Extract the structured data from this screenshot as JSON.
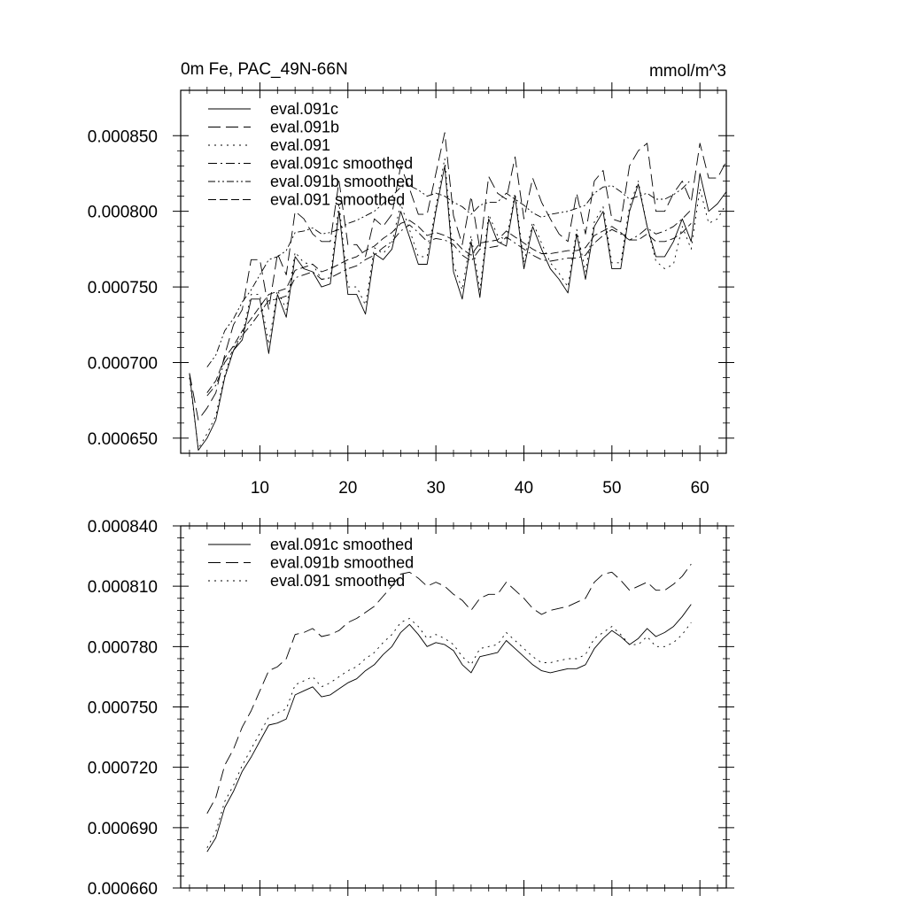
{
  "chart_data": [
    {
      "type": "line",
      "title_left": "0m Fe, PAC_49N-66N",
      "title_right": "mmol/m^3",
      "xlabel": "",
      "ylabel": "",
      "xlim": [
        1,
        63
      ],
      "ylim": [
        0.00064,
        0.00088
      ],
      "xticks": [
        10,
        20,
        30,
        40,
        50,
        60
      ],
      "xtick_labels": [
        "10",
        "20",
        "30",
        "40",
        "50",
        "60"
      ],
      "yticks": [
        0.00065,
        0.0007,
        0.00075,
        0.0008,
        0.00085
      ],
      "ytick_labels": [
        "0.000650",
        "0.000700",
        "0.000750",
        "0.000800",
        "0.000850"
      ],
      "grid": false,
      "legend_position": "top-left",
      "x_start": 2,
      "series": [
        {
          "name": "eval.091c",
          "dash": "solid",
          "values": [
            0.000693,
            0.000642,
            0.00065,
            0.000662,
            0.00069,
            0.000708,
            0.000715,
            0.000742,
            0.000742,
            0.000706,
            0.000745,
            0.00073,
            0.00077,
            0.000762,
            0.00076,
            0.00075,
            0.000752,
            0.0008,
            0.000745,
            0.000745,
            0.000732,
            0.000772,
            0.000768,
            0.000775,
            0.0008,
            0.000783,
            0.000765,
            0.000765,
            0.0008,
            0.00083,
            0.00076,
            0.000742,
            0.00078,
            0.000743,
            0.000795,
            0.00078,
            0.000777,
            0.00081,
            0.000762,
            0.00079,
            0.000775,
            0.000762,
            0.000755,
            0.000746,
            0.000785,
            0.000755,
            0.00079,
            0.0008,
            0.000762,
            0.000762,
            0.0008,
            0.000818,
            0.00079,
            0.00077,
            0.00077,
            0.00078,
            0.000795,
            0.00078,
            0.000825,
            0.0008,
            0.000805,
            0.000813
          ]
        },
        {
          "name": "eval.091b",
          "dash": "long",
          "values": [
            0.000693,
            0.000662,
            0.00067,
            0.00068,
            0.000705,
            0.000725,
            0.000735,
            0.000768,
            0.000768,
            0.000735,
            0.000772,
            0.000758,
            0.0008,
            0.000795,
            0.000785,
            0.00078,
            0.00078,
            0.00082,
            0.000778,
            0.000778,
            0.00077,
            0.000795,
            0.00079,
            0.000798,
            0.00083,
            0.000815,
            0.000798,
            0.000798,
            0.000825,
            0.000852,
            0.000797,
            0.000778,
            0.00081,
            0.000775,
            0.000823,
            0.000812,
            0.000808,
            0.000836,
            0.000795,
            0.000822,
            0.000806,
            0.000795,
            0.000785,
            0.00078,
            0.000812,
            0.000785,
            0.00082,
            0.000827,
            0.000795,
            0.000793,
            0.00083,
            0.00084,
            0.000845,
            0.0008,
            0.0008,
            0.000812,
            0.00082,
            0.000806,
            0.000845,
            0.000822,
            0.000822,
            0.000833
          ]
        },
        {
          "name": "eval.091",
          "dash": "dot",
          "values": [
            0.00069,
            0.000643,
            0.000653,
            0.000665,
            0.000692,
            0.00071,
            0.000718,
            0.000745,
            0.000745,
            0.000712,
            0.000748,
            0.000735,
            0.000773,
            0.000766,
            0.000765,
            0.000755,
            0.000756,
            0.000805,
            0.00075,
            0.00075,
            0.000738,
            0.000776,
            0.000772,
            0.000779,
            0.000805,
            0.000788,
            0.00077,
            0.00077,
            0.000803,
            0.000835,
            0.000765,
            0.000748,
            0.000784,
            0.000748,
            0.000798,
            0.000784,
            0.000781,
            0.000812,
            0.000766,
            0.000793,
            0.000779,
            0.000766,
            0.000759,
            0.00075,
            0.000788,
            0.00076,
            0.000793,
            0.000803,
            0.000766,
            0.000766,
            0.000803,
            0.00082,
            0.00079,
            0.000767,
            0.000762,
            0.000765,
            0.00079,
            0.000775,
            0.000815,
            0.000792,
            0.000795,
            0.000805
          ]
        },
        {
          "name": "eval.091c smoothed",
          "dash": "dashdot",
          "x_start": 4,
          "values": [
            0.000678,
            0.000685,
            0.0007,
            0.000708,
            0.000718,
            0.000725,
            0.000733,
            0.000741,
            0.000742,
            0.000744,
            0.000756,
            0.000758,
            0.00076,
            0.000755,
            0.000756,
            0.000759,
            0.000762,
            0.000764,
            0.000768,
            0.000771,
            0.000776,
            0.00078,
            0.000787,
            0.000791,
            0.000786,
            0.00078,
            0.000782,
            0.000781,
            0.000778,
            0.000771,
            0.000767,
            0.000775,
            0.000776,
            0.000777,
            0.000783,
            0.000779,
            0.000775,
            0.000771,
            0.000768,
            0.000767,
            0.000768,
            0.000769,
            0.000769,
            0.000771,
            0.000779,
            0.000784,
            0.000788,
            0.000785,
            0.000781,
            0.000784,
            0.000789,
            0.000785,
            0.000787,
            0.00079,
            0.000795,
            0.000801
          ]
        },
        {
          "name": "eval.091b smoothed",
          "dash": "dashdotdot",
          "x_start": 4,
          "values": [
            0.000697,
            0.000705,
            0.000721,
            0.000729,
            0.00074,
            0.000748,
            0.000758,
            0.000768,
            0.00077,
            0.000774,
            0.000786,
            0.000787,
            0.000789,
            0.000785,
            0.000786,
            0.000788,
            0.000792,
            0.000794,
            0.000797,
            0.0008,
            0.000805,
            0.00081,
            0.000816,
            0.000817,
            0.000814,
            0.00081,
            0.000812,
            0.00081,
            0.000806,
            0.000803,
            0.000798,
            0.000804,
            0.000806,
            0.000806,
            0.000812,
            0.000808,
            0.000804,
            0.000799,
            0.000796,
            0.000798,
            0.000799,
            0.0008,
            0.000802,
            0.000804,
            0.000812,
            0.000816,
            0.000817,
            0.000813,
            0.000808,
            0.00081,
            0.000812,
            0.000808,
            0.000808,
            0.000811,
            0.000815,
            0.000821
          ]
        },
        {
          "name": "eval.091 smoothed",
          "dash": "medium",
          "x_start": 4,
          "values": [
            0.00068,
            0.000688,
            0.000703,
            0.000711,
            0.000721,
            0.000729,
            0.000737,
            0.000745,
            0.000747,
            0.000749,
            0.000761,
            0.000763,
            0.000765,
            0.00076,
            0.000762,
            0.000765,
            0.000768,
            0.00077,
            0.000774,
            0.000777,
            0.000782,
            0.000786,
            0.000792,
            0.000794,
            0.00079,
            0.000784,
            0.000786,
            0.000784,
            0.000781,
            0.000775,
            0.000771,
            0.000779,
            0.00078,
            0.000781,
            0.000787,
            0.000783,
            0.000779,
            0.000775,
            0.000772,
            0.000772,
            0.000773,
            0.000774,
            0.000774,
            0.000776,
            0.000784,
            0.000787,
            0.00079,
            0.000786,
            0.000781,
            0.000781,
            0.000785,
            0.00078,
            0.00078,
            0.000782,
            0.000786,
            0.000792
          ]
        }
      ]
    },
    {
      "type": "line",
      "title_left": "",
      "title_right": "",
      "xlabel": "",
      "ylabel": "",
      "xlim": [
        1,
        63
      ],
      "ylim": [
        0.00066,
        0.00084
      ],
      "xticks": [
        10,
        20,
        30,
        40,
        50,
        60
      ],
      "xtick_labels": [],
      "yticks": [
        0.00066,
        0.00069,
        0.00072,
        0.00075,
        0.00078,
        0.00081,
        0.00084
      ],
      "ytick_labels": [
        "0.000660",
        "0.000690",
        "0.000720",
        "0.000750",
        "0.000780",
        "0.000810",
        "0.000840"
      ],
      "grid": false,
      "legend_position": "top-left",
      "x_start": 4,
      "series": [
        {
          "name": "eval.091c smoothed",
          "dash": "solid",
          "values": [
            0.000678,
            0.000685,
            0.0007,
            0.000708,
            0.000718,
            0.000725,
            0.000733,
            0.000741,
            0.000742,
            0.000744,
            0.000756,
            0.000758,
            0.00076,
            0.000755,
            0.000756,
            0.000759,
            0.000762,
            0.000764,
            0.000768,
            0.000771,
            0.000776,
            0.00078,
            0.000787,
            0.000791,
            0.000786,
            0.00078,
            0.000782,
            0.000781,
            0.000778,
            0.000771,
            0.000767,
            0.000775,
            0.000776,
            0.000777,
            0.000783,
            0.000779,
            0.000775,
            0.000771,
            0.000768,
            0.000767,
            0.000768,
            0.000769,
            0.000769,
            0.000771,
            0.000779,
            0.000784,
            0.000788,
            0.000785,
            0.000781,
            0.000784,
            0.000789,
            0.000785,
            0.000787,
            0.00079,
            0.000795,
            0.000801
          ]
        },
        {
          "name": "eval.091b smoothed",
          "dash": "long",
          "values": [
            0.000697,
            0.000705,
            0.000721,
            0.000729,
            0.00074,
            0.000748,
            0.000758,
            0.000768,
            0.00077,
            0.000774,
            0.000786,
            0.000787,
            0.000789,
            0.000785,
            0.000786,
            0.000788,
            0.000792,
            0.000794,
            0.000797,
            0.0008,
            0.000805,
            0.00081,
            0.000816,
            0.000817,
            0.000814,
            0.00081,
            0.000812,
            0.00081,
            0.000806,
            0.000803,
            0.000798,
            0.000804,
            0.000806,
            0.000806,
            0.000812,
            0.000808,
            0.000804,
            0.000799,
            0.000796,
            0.000798,
            0.000799,
            0.0008,
            0.000802,
            0.000804,
            0.000812,
            0.000816,
            0.000817,
            0.000813,
            0.000808,
            0.00081,
            0.000812,
            0.000808,
            0.000808,
            0.000811,
            0.000815,
            0.000821
          ]
        },
        {
          "name": "eval.091 smoothed",
          "dash": "dot",
          "values": [
            0.00068,
            0.000688,
            0.000703,
            0.000711,
            0.000721,
            0.000729,
            0.000737,
            0.000745,
            0.000747,
            0.000749,
            0.000761,
            0.000763,
            0.000765,
            0.00076,
            0.000762,
            0.000765,
            0.000768,
            0.00077,
            0.000774,
            0.000777,
            0.000782,
            0.000786,
            0.000792,
            0.000794,
            0.00079,
            0.000784,
            0.000786,
            0.000784,
            0.000781,
            0.000775,
            0.000771,
            0.000779,
            0.00078,
            0.000781,
            0.000787,
            0.000783,
            0.000779,
            0.000775,
            0.000772,
            0.000772,
            0.000773,
            0.000774,
            0.000774,
            0.000776,
            0.000784,
            0.000787,
            0.00079,
            0.000786,
            0.000781,
            0.000781,
            0.000785,
            0.00078,
            0.00078,
            0.000782,
            0.000786,
            0.000792
          ]
        }
      ]
    }
  ]
}
